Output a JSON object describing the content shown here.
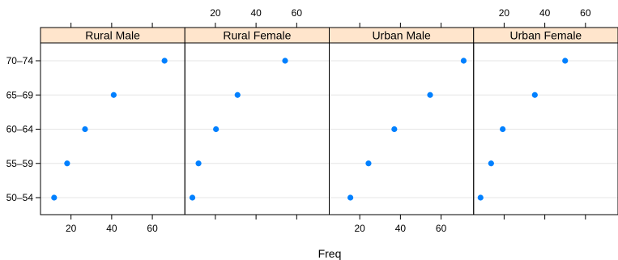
{
  "chart_data": {
    "type": "scatter",
    "xlabel": "Freq",
    "ylabel": "",
    "xlim": [
      5,
      76
    ],
    "x_ticks": [
      20,
      40,
      60
    ],
    "categories": [
      "50–54",
      "55–59",
      "60–64",
      "65–69",
      "70–74"
    ],
    "series": [
      {
        "name": "Rural Male",
        "values": [
          11.7,
          18.1,
          26.9,
          41.0,
          66.0
        ]
      },
      {
        "name": "Rural Female",
        "values": [
          8.7,
          11.7,
          20.3,
          30.9,
          54.3
        ]
      },
      {
        "name": "Urban Male",
        "values": [
          15.4,
          24.3,
          37.0,
          54.6,
          71.1
        ]
      },
      {
        "name": "Urban Female",
        "values": [
          8.4,
          13.6,
          19.3,
          35.1,
          50.0
        ]
      }
    ],
    "grid": true,
    "strip_color": "#FFE5CC",
    "point_color": "#0080FF",
    "grid_color": "#E6E6E6"
  }
}
